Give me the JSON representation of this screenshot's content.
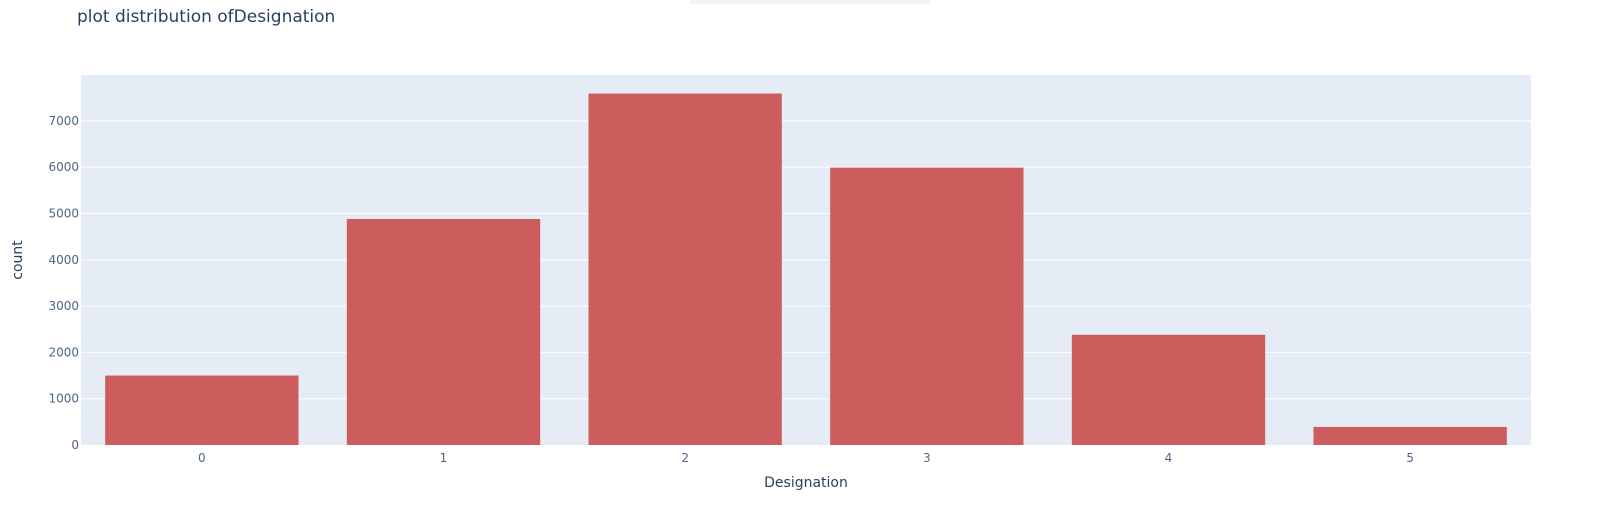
{
  "chart_data": {
    "type": "bar",
    "title": "plot distribution ofDesignation",
    "xlabel": "Designation",
    "ylabel": "count",
    "categories": [
      "0",
      "1",
      "2",
      "3",
      "4",
      "5"
    ],
    "values": [
      1500,
      4880,
      7590,
      5990,
      2380,
      390
    ],
    "ylim": [
      0,
      7990
    ],
    "yticks": [
      0,
      1000,
      2000,
      3000,
      4000,
      5000,
      6000,
      7000
    ],
    "ytick_labels": [
      "0",
      "1000",
      "2000",
      "3000",
      "4000",
      "5000",
      "6000",
      "7000"
    ],
    "grid": true,
    "legend": "none",
    "colors": {
      "bar": "#cd5c5c",
      "plot_bg": "#e5ecf6",
      "grid": "#ffffff",
      "text": "#2a3f5f"
    }
  }
}
